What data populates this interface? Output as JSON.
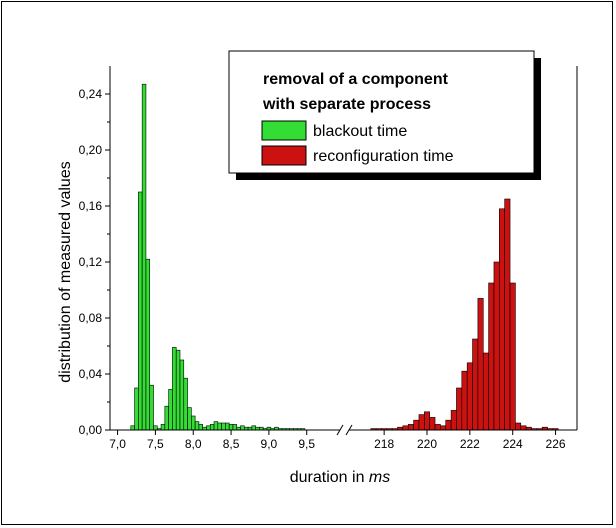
{
  "chart_data": {
    "type": "bar",
    "title": "",
    "xlabel": {
      "prefix": "duration in ",
      "unit": "ms"
    },
    "ylabel": "distribution of measured values",
    "ylim": [
      0,
      0.26
    ],
    "y_ticks": [
      {
        "value": 0.0,
        "label": "0,00"
      },
      {
        "value": 0.04,
        "label": "0,04"
      },
      {
        "value": 0.08,
        "label": "0,08"
      },
      {
        "value": 0.12,
        "label": "0,12"
      },
      {
        "value": 0.16,
        "label": "0,16"
      },
      {
        "value": 0.2,
        "label": "0,20"
      },
      {
        "value": 0.24,
        "label": "0,24"
      }
    ],
    "x_segments": [
      {
        "range": [
          6.9,
          9.9
        ],
        "ticks": [
          {
            "value": 7.0,
            "label": "7,0"
          },
          {
            "value": 7.5,
            "label": "7,5"
          },
          {
            "value": 8.0,
            "label": "8,0"
          },
          {
            "value": 8.5,
            "label": "8,5"
          },
          {
            "value": 9.0,
            "label": "9,0"
          },
          {
            "value": 9.5,
            "label": "9,5"
          }
        ]
      },
      {
        "range": [
          216.5,
          227.0
        ],
        "ticks": [
          {
            "value": 218,
            "label": "218"
          },
          {
            "value": 220,
            "label": "220"
          },
          {
            "value": 222,
            "label": "222"
          },
          {
            "value": 224,
            "label": "224"
          },
          {
            "value": 226,
            "label": "226"
          }
        ]
      }
    ],
    "axis_break": true,
    "grid": false,
    "legend": {
      "placement": "top-right",
      "title_lines": [
        "removal of a component",
        "with separate process"
      ]
    },
    "series": [
      {
        "name": "blackout time",
        "color": "#33dd33",
        "bin_width": 0.05,
        "x": [
          7.2,
          7.25,
          7.3,
          7.35,
          7.4,
          7.45,
          7.5,
          7.55,
          7.6,
          7.65,
          7.7,
          7.75,
          7.8,
          7.85,
          7.9,
          7.95,
          8.0,
          8.05,
          8.1,
          8.15,
          8.2,
          8.25,
          8.3,
          8.35,
          8.4,
          8.45,
          8.5,
          8.55,
          8.6,
          8.65,
          8.7,
          8.75,
          8.8,
          8.85,
          8.9,
          8.95,
          9.0,
          9.05,
          9.1,
          9.15,
          9.2,
          9.25,
          9.3,
          9.35,
          9.4,
          9.45
        ],
        "values": [
          0.003,
          0.03,
          0.17,
          0.247,
          0.122,
          0.032,
          0.003,
          0.001,
          0.004,
          0.017,
          0.029,
          0.059,
          0.057,
          0.05,
          0.037,
          0.016,
          0.01,
          0.006,
          0.004,
          0.002,
          0.003,
          0.004,
          0.006,
          0.005,
          0.005,
          0.005,
          0.004,
          0.004,
          0.002,
          0.003,
          0.002,
          0.002,
          0.003,
          0.002,
          0.002,
          0.001,
          0.002,
          0.001,
          0.002,
          0.001,
          0.001,
          0.001,
          0.001,
          0.001,
          0.001,
          0.001
        ]
      },
      {
        "name": "reconfiguration time",
        "color": "#cc1111",
        "bin_width": 0.25,
        "x": [
          217.5,
          217.75,
          218.0,
          218.25,
          218.5,
          218.75,
          219.0,
          219.25,
          219.5,
          219.75,
          220.0,
          220.25,
          220.5,
          220.75,
          221.0,
          221.25,
          221.5,
          221.75,
          222.0,
          222.25,
          222.5,
          222.75,
          223.0,
          223.25,
          223.5,
          223.75,
          224.0,
          224.25,
          224.5,
          224.75,
          225.0,
          225.25,
          225.5,
          225.75,
          226.0
        ],
        "values": [
          0.001,
          0.001,
          0.001,
          0.001,
          0.001,
          0.002,
          0.003,
          0.004,
          0.007,
          0.011,
          0.013,
          0.009,
          0.004,
          0.003,
          0.007,
          0.014,
          0.03,
          0.042,
          0.048,
          0.065,
          0.094,
          0.055,
          0.105,
          0.12,
          0.158,
          0.165,
          0.105,
          0.005,
          0.003,
          0.002,
          0.001,
          0.001,
          0.002,
          0.001,
          0.001
        ]
      }
    ]
  }
}
